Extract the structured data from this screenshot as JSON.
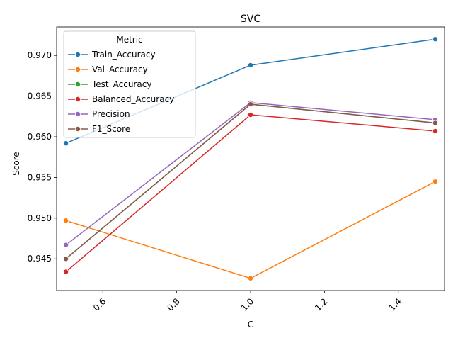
{
  "chart_data": {
    "type": "line",
    "title": "SVC",
    "xlabel": "C",
    "ylabel": "Score",
    "xlim": [
      0.475,
      1.525
    ],
    "ylim": [
      0.9411,
      0.9735
    ],
    "x": [
      0.5,
      1.0,
      1.5
    ],
    "x_ticks": [
      {
        "value": 0.6,
        "label": "0.6"
      },
      {
        "value": 0.8,
        "label": "0.8"
      },
      {
        "value": 1.0,
        "label": "1.0"
      },
      {
        "value": 1.2,
        "label": "1.2"
      },
      {
        "value": 1.4,
        "label": "1.4"
      }
    ],
    "y_ticks": [
      {
        "value": 0.945,
        "label": "0.945"
      },
      {
        "value": 0.95,
        "label": "0.950"
      },
      {
        "value": 0.955,
        "label": "0.955"
      },
      {
        "value": 0.96,
        "label": "0.960"
      },
      {
        "value": 0.965,
        "label": "0.965"
      },
      {
        "value": 0.97,
        "label": "0.970"
      }
    ],
    "grid": false,
    "legend": {
      "title": "Metric",
      "position": "top-left"
    },
    "series": [
      {
        "name": "Train_Accuracy",
        "color": "#1f77b4",
        "values": [
          0.9592,
          0.9688,
          0.972
        ]
      },
      {
        "name": "Val_Accuracy",
        "color": "#ff7f0e",
        "values": [
          0.9497,
          0.9426,
          0.9545
        ]
      },
      {
        "name": "Test_Accuracy",
        "color": "#2ca02c",
        "values": [
          0.945,
          0.964,
          0.9617
        ]
      },
      {
        "name": "Balanced_Accuracy",
        "color": "#d62728",
        "values": [
          0.9434,
          0.9627,
          0.9607
        ]
      },
      {
        "name": "Precision",
        "color": "#9467bd",
        "values": [
          0.9467,
          0.9642,
          0.9621
        ]
      },
      {
        "name": "F1_Score",
        "color": "#8c564b",
        "values": [
          0.945,
          0.964,
          0.9617
        ]
      }
    ]
  }
}
